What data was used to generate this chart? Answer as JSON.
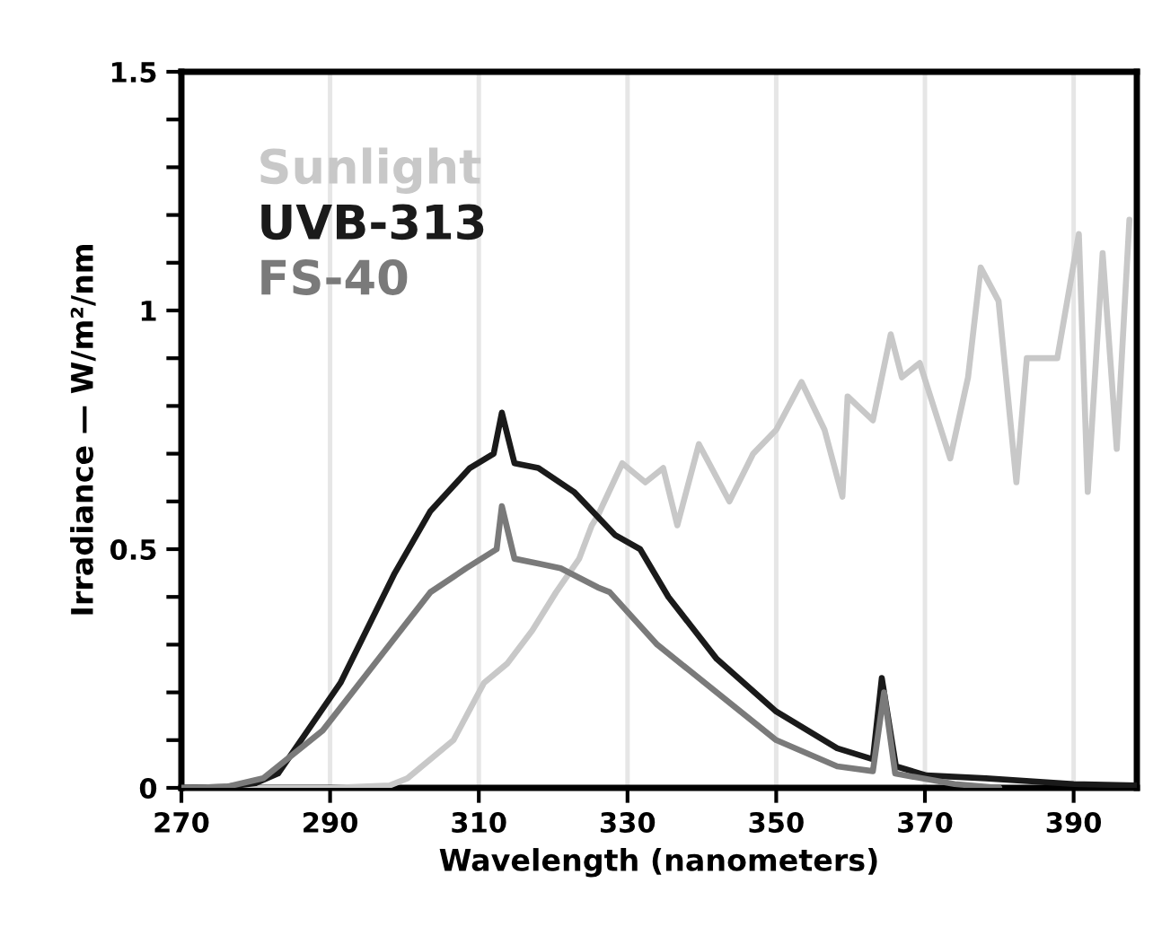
{
  "chart_data": {
    "type": "line",
    "xlabel": "Wavelength (nanometers)",
    "ylabel": "Irradiance — W/m²/nm",
    "xlim": [
      270,
      398.5
    ],
    "ylim": [
      0,
      1.5
    ],
    "xticks": [
      270,
      290,
      310,
      330,
      350,
      370,
      390
    ],
    "yticks": [
      0,
      {
        "value": 0.1,
        "label": null
      },
      {
        "value": 0.2,
        "label": null
      },
      {
        "value": 0.3,
        "label": null
      },
      {
        "value": 0.4,
        "label": null
      },
      0.5,
      {
        "value": 0.6,
        "label": null
      },
      {
        "value": 0.7,
        "label": null
      },
      {
        "value": 0.8,
        "label": null
      },
      {
        "value": 0.9,
        "label": null
      },
      1,
      {
        "value": 1.1,
        "label": null
      },
      {
        "value": 1.2,
        "label": null
      },
      {
        "value": 1.3,
        "label": null
      },
      {
        "value": 1.4,
        "label": null
      },
      1.5
    ],
    "grid": "x",
    "legend": "top left",
    "marker": "none",
    "line_style": "solid",
    "series": [
      {
        "name": "Sunlight",
        "color": "#c8c8c8",
        "x": [
          270,
          290,
          298,
          300.4,
          306.6,
          310.7,
          313.8,
          317.2,
          320.4,
          323.5,
          325.2,
          326,
          329.3,
          332.4,
          334.8,
          336.7,
          339.6,
          343.7,
          346.9,
          350,
          353.4,
          356.5,
          358.9,
          359.6,
          363,
          365.4,
          366.9,
          369.3,
          373.4,
          375.8,
          377.5,
          379.9,
          382.3,
          383.7,
          387.8,
          390.7,
          391.9,
          393.9,
          395.8,
          397.5
        ],
        "values": [
          0,
          0,
          0.005,
          0.02,
          0.1,
          0.22,
          0.26,
          0.33,
          0.41,
          0.48,
          0.55,
          0.57,
          0.68,
          0.64,
          0.67,
          0.55,
          0.72,
          0.6,
          0.7,
          0.75,
          0.85,
          0.75,
          0.61,
          0.82,
          0.77,
          0.95,
          0.86,
          0.89,
          0.69,
          0.86,
          1.09,
          1.02,
          0.64,
          0.9,
          0.9,
          1.16,
          0.62,
          1.12,
          0.71,
          1.19
        ]
      },
      {
        "name": "UVB-313",
        "color": "#1a1a1a",
        "x": [
          270,
          276,
          280,
          283,
          291.4,
          298.7,
          303.5,
          308.8,
          312,
          313.1,
          314.8,
          318,
          322.8,
          328.3,
          331.7,
          335.5,
          342,
          350,
          358.2,
          363,
          364.2,
          366.1,
          370.2,
          378.2,
          390,
          398.5
        ],
        "values": [
          0,
          0.002,
          0.01,
          0.03,
          0.22,
          0.45,
          0.58,
          0.67,
          0.7,
          0.786,
          0.68,
          0.67,
          0.62,
          0.53,
          0.5,
          0.4,
          0.27,
          0.16,
          0.083,
          0.06,
          0.23,
          0.045,
          0.026,
          0.02,
          0.008,
          0.005
        ]
      },
      {
        "name": "FS-40",
        "color": "#7a7a7a",
        "x": [
          270,
          276,
          281,
          289,
          297,
          303.5,
          308.3,
          312.4,
          313.1,
          314.8,
          318,
          321,
          326,
          327.6,
          334,
          342,
          350,
          358.2,
          363,
          364.5,
          366,
          374,
          380
        ],
        "values": [
          0,
          0.002,
          0.02,
          0.12,
          0.28,
          0.41,
          0.46,
          0.5,
          0.59,
          0.48,
          0.47,
          0.46,
          0.42,
          0.41,
          0.3,
          0.2,
          0.1,
          0.045,
          0.035,
          0.2,
          0.03,
          0.008,
          0
        ]
      }
    ]
  }
}
